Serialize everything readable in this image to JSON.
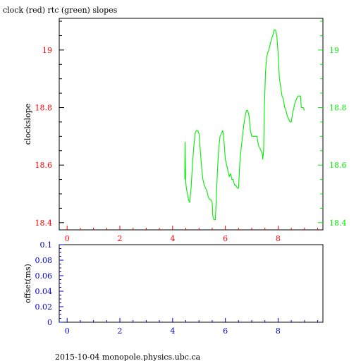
{
  "title": "clock (red) rtc (green) slopes",
  "footer": "2015-10-04 monopole.physics.ubc.ca",
  "colors": {
    "red": "#ff0000",
    "green": "#00ee00",
    "blue": "#0000cc",
    "axis": "#000000"
  },
  "chart_data": [
    {
      "type": "line",
      "ylabel": "clockslope",
      "xlim": [
        -0.3,
        9.7
      ],
      "ylim": [
        18.375,
        19.11
      ],
      "x_ticks": [
        0,
        2,
        4,
        6,
        8
      ],
      "x_tick_labels": [
        "0",
        "2",
        "4",
        "6",
        "8"
      ],
      "y_ticks_left": [
        18.4,
        18.6,
        18.8,
        19.0
      ],
      "y_tick_labels_left": [
        "18.4",
        "18.6",
        "18.8",
        "19"
      ],
      "y_ticks_right": [
        18.4,
        18.6,
        18.8,
        19.0
      ],
      "y_tick_labels_right": [
        "18.4",
        "18.6",
        "18.8",
        "19"
      ],
      "grid": false,
      "series": [
        {
          "color": "green",
          "points": [
            [
              4.46,
              18.55
            ],
            [
              4.47,
              18.68
            ],
            [
              4.48,
              18.62
            ],
            [
              4.5,
              18.54
            ],
            [
              4.52,
              18.52
            ],
            [
              4.56,
              18.5
            ],
            [
              4.6,
              18.48
            ],
            [
              4.65,
              18.47
            ],
            [
              4.7,
              18.52
            ],
            [
              4.75,
              18.6
            ],
            [
              4.8,
              18.66
            ],
            [
              4.85,
              18.71
            ],
            [
              4.9,
              18.72
            ],
            [
              4.95,
              18.72
            ],
            [
              5.0,
              18.71
            ],
            [
              5.05,
              18.65
            ],
            [
              5.1,
              18.59
            ],
            [
              5.15,
              18.55
            ],
            [
              5.2,
              18.53
            ],
            [
              5.25,
              18.52
            ],
            [
              5.3,
              18.51
            ],
            [
              5.35,
              18.49
            ],
            [
              5.4,
              18.48
            ],
            [
              5.45,
              18.48
            ],
            [
              5.5,
              18.47
            ],
            [
              5.53,
              18.42
            ],
            [
              5.57,
              18.41
            ],
            [
              5.62,
              18.41
            ],
            [
              5.66,
              18.49
            ],
            [
              5.7,
              18.58
            ],
            [
              5.75,
              18.66
            ],
            [
              5.8,
              18.7
            ],
            [
              5.85,
              18.71
            ],
            [
              5.9,
              18.72
            ],
            [
              5.95,
              18.68
            ],
            [
              6.0,
              18.62
            ],
            [
              6.05,
              18.6
            ],
            [
              6.1,
              18.58
            ],
            [
              6.15,
              18.56
            ],
            [
              6.2,
              18.57
            ],
            [
              6.25,
              18.55
            ],
            [
              6.3,
              18.55
            ],
            [
              6.35,
              18.53
            ],
            [
              6.4,
              18.53
            ],
            [
              6.45,
              18.52
            ],
            [
              6.5,
              18.52
            ],
            [
              6.55,
              18.61
            ],
            [
              6.6,
              18.66
            ],
            [
              6.65,
              18.7
            ],
            [
              6.7,
              18.74
            ],
            [
              6.75,
              18.77
            ],
            [
              6.8,
              18.79
            ],
            [
              6.85,
              18.79
            ],
            [
              6.9,
              18.77
            ],
            [
              6.95,
              18.72
            ],
            [
              7.0,
              18.7
            ],
            [
              7.05,
              18.7
            ],
            [
              7.1,
              18.7
            ],
            [
              7.15,
              18.7
            ],
            [
              7.2,
              18.7
            ],
            [
              7.25,
              18.67
            ],
            [
              7.3,
              18.66
            ],
            [
              7.35,
              18.65
            ],
            [
              7.4,
              18.64
            ],
            [
              7.42,
              18.62
            ],
            [
              7.45,
              18.65
            ],
            [
              7.48,
              18.8
            ],
            [
              7.52,
              18.92
            ],
            [
              7.56,
              18.97
            ],
            [
              7.6,
              18.99
            ],
            [
              7.65,
              19.0
            ],
            [
              7.7,
              19.02
            ],
            [
              7.75,
              19.04
            ],
            [
              7.8,
              19.05
            ],
            [
              7.85,
              19.07
            ],
            [
              7.9,
              19.07
            ],
            [
              7.95,
              19.05
            ],
            [
              8.0,
              18.99
            ],
            [
              8.05,
              18.9
            ],
            [
              8.1,
              18.87
            ],
            [
              8.15,
              18.84
            ],
            [
              8.2,
              18.83
            ],
            [
              8.25,
              18.8
            ],
            [
              8.3,
              18.79
            ],
            [
              8.35,
              18.77
            ],
            [
              8.4,
              18.76
            ],
            [
              8.45,
              18.75
            ],
            [
              8.5,
              18.75
            ],
            [
              8.55,
              18.78
            ],
            [
              8.6,
              18.8
            ],
            [
              8.65,
              18.82
            ],
            [
              8.7,
              18.83
            ],
            [
              8.75,
              18.84
            ],
            [
              8.8,
              18.84
            ],
            [
              8.85,
              18.84
            ],
            [
              8.88,
              18.8
            ],
            [
              8.95,
              18.8
            ],
            [
              9.0,
              18.79
            ]
          ]
        }
      ]
    },
    {
      "type": "line",
      "ylabel": "offset(ms)",
      "xlim": [
        -0.3,
        9.7
      ],
      "ylim": [
        0,
        0.1
      ],
      "x_ticks": [
        0,
        2,
        4,
        6,
        8
      ],
      "x_tick_labels": [
        "0",
        "2",
        "4",
        "6",
        "8"
      ],
      "y_ticks": [
        0,
        0.02,
        0.04,
        0.06,
        0.08,
        0.1
      ],
      "y_tick_labels": [
        "0",
        "0.02",
        "0.04",
        "0.06",
        "0.08",
        "0.1"
      ],
      "grid": false,
      "series": []
    }
  ]
}
